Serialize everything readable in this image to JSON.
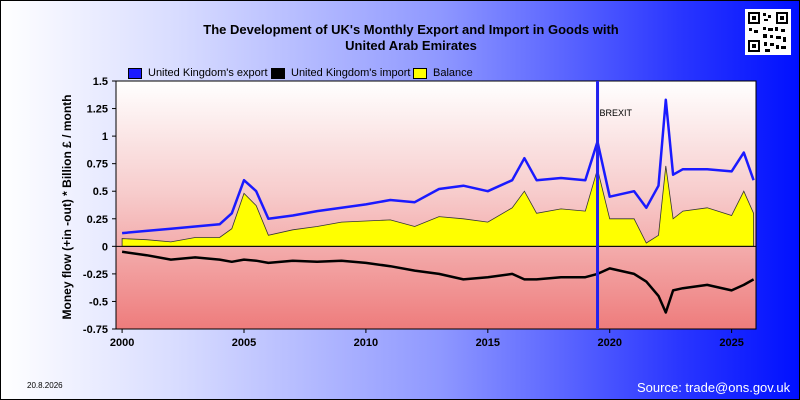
{
  "title_line1": "The Development of UK's Monthly Export and Import in Goods with",
  "title_line2": "United Arab Emirates",
  "date_stamp": "20.8.2026",
  "source": "Source: trade@ons.gov.uk",
  "qr_icon": "qr-code-icon",
  "colors": {
    "export": "#1a1aff",
    "import": "#000000",
    "balance": "#ffff00",
    "brexit_line": "#2222ee"
  },
  "chart_data": {
    "type": "line",
    "ylabel": "Money flow (+in -out) * Billion £ / month",
    "xlabel": "",
    "x_ticks": [
      "2000",
      "2005",
      "2010",
      "2015",
      "2020",
      "2025"
    ],
    "y_ticks": [
      "1.5",
      "1.25",
      "1",
      "0.75",
      "0.5",
      "0.25",
      "0",
      "-0.25",
      "-0.5",
      "-0.75"
    ],
    "ylim": [
      -0.75,
      1.5
    ],
    "xlim": [
      1999.75,
      2026.0
    ],
    "grid": false,
    "legend_position": "top",
    "annotation": {
      "label": "BREXIT",
      "x": 2019.5
    },
    "x": [
      2000,
      2001,
      2002,
      2003,
      2004,
      2004.5,
      2005,
      2005.5,
      2006,
      2007,
      2008,
      2009,
      2010,
      2011,
      2012,
      2013,
      2014,
      2015,
      2016,
      2016.5,
      2017,
      2018,
      2019,
      2019.5,
      2020,
      2021,
      2021.5,
      2022,
      2022.3,
      2022.6,
      2023,
      2024,
      2025,
      2025.5,
      2025.9
    ],
    "series": [
      {
        "name": "United Kingdom's export",
        "values": [
          0.12,
          0.14,
          0.16,
          0.18,
          0.2,
          0.3,
          0.6,
          0.5,
          0.25,
          0.28,
          0.32,
          0.35,
          0.38,
          0.42,
          0.4,
          0.52,
          0.55,
          0.5,
          0.6,
          0.8,
          0.6,
          0.62,
          0.6,
          0.95,
          0.45,
          0.5,
          0.35,
          0.55,
          1.33,
          0.65,
          0.7,
          0.7,
          0.68,
          0.85,
          0.6
        ]
      },
      {
        "name": "United Kingdom's import",
        "values": [
          -0.05,
          -0.08,
          -0.12,
          -0.1,
          -0.12,
          -0.14,
          -0.12,
          -0.13,
          -0.15,
          -0.13,
          -0.14,
          -0.13,
          -0.15,
          -0.18,
          -0.22,
          -0.25,
          -0.3,
          -0.28,
          -0.25,
          -0.3,
          -0.3,
          -0.28,
          -0.28,
          -0.25,
          -0.2,
          -0.25,
          -0.32,
          -0.45,
          -0.6,
          -0.4,
          -0.38,
          -0.35,
          -0.4,
          -0.35,
          -0.3
        ]
      },
      {
        "name": "Balance",
        "values": [
          0.07,
          0.06,
          0.04,
          0.08,
          0.08,
          0.16,
          0.48,
          0.37,
          0.1,
          0.15,
          0.18,
          0.22,
          0.23,
          0.24,
          0.18,
          0.27,
          0.25,
          0.22,
          0.35,
          0.5,
          0.3,
          0.34,
          0.32,
          0.7,
          0.25,
          0.25,
          0.03,
          0.1,
          0.73,
          0.25,
          0.32,
          0.35,
          0.28,
          0.5,
          0.3
        ]
      }
    ]
  }
}
